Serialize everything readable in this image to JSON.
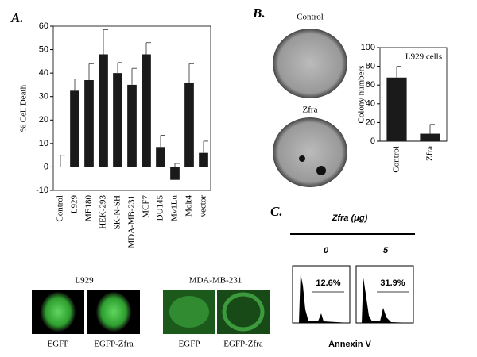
{
  "chart_data": [
    {
      "type": "bar",
      "panel": "A.",
      "y_label": "% Cell Death",
      "categories": [
        "Control",
        "L929",
        "ME180",
        "HEK-293",
        "SK-N-SH",
        "MDA-MB-231",
        "MCF7",
        "DU145",
        "Mv1Lu",
        "Molt4",
        "vector"
      ],
      "values": [
        0,
        32.5,
        37,
        48,
        40,
        35,
        48,
        8.5,
        -5.5,
        36,
        6
      ],
      "errors": [
        5,
        5,
        7,
        10.5,
        4.5,
        7,
        5,
        5,
        7,
        8,
        5
      ],
      "color": "#1a1a1a",
      "ylim": [
        -10,
        60
      ],
      "yticks": [
        -10,
        0,
        10,
        20,
        30,
        40,
        50,
        60
      ]
    },
    {
      "type": "bar",
      "panel": "B.",
      "y_label": "Colony numbers",
      "annotation": "L929 cells",
      "categories": [
        "Control",
        "Zfra"
      ],
      "values": [
        68,
        8
      ],
      "errors": [
        12,
        10
      ],
      "color": "#1a1a1a",
      "ylim": [
        0,
        100
      ],
      "yticks": [
        0,
        20,
        40,
        60,
        80,
        100
      ]
    }
  ],
  "figure": {
    "dishes": [
      "Control",
      "Zfra"
    ],
    "panel_c": {
      "label": "C.",
      "title": "Zfra (μg)",
      "doses": [
        "0",
        "5"
      ],
      "percents": [
        "12.6%",
        "31.9%"
      ],
      "x_label": "Annexin V"
    },
    "cells": {
      "groups": [
        "L929",
        "MDA-MB-231"
      ],
      "captions": [
        "EGFP",
        "EGFP-Zfra",
        "EGFP",
        "EGFP-Zfra"
      ]
    }
  }
}
